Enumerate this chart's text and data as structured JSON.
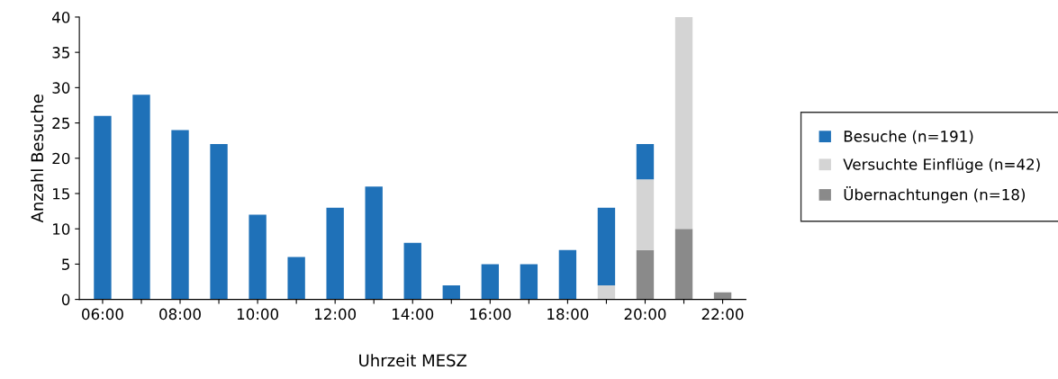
{
  "chart_data": {
    "type": "bar",
    "stacked": true,
    "xlabel": "Uhrzeit MESZ",
    "ylabel": "Anzahl Besuche",
    "categories": [
      "06:00",
      null,
      "08:00",
      null,
      "10:00",
      null,
      "12:00",
      null,
      "14:00",
      null,
      "16:00",
      null,
      "18:00",
      null,
      "20:00",
      null,
      "22:00"
    ],
    "series": [
      {
        "name": "Übernachtungen (n=18)",
        "color": "#8a8a8a",
        "values": [
          null,
          null,
          null,
          null,
          null,
          null,
          null,
          null,
          null,
          null,
          null,
          null,
          null,
          null,
          7,
          10,
          1
        ]
      },
      {
        "name": "Versuchte Einflüge (n=42)",
        "color": "#d4d4d4",
        "values": [
          null,
          null,
          null,
          null,
          null,
          null,
          null,
          null,
          null,
          null,
          null,
          null,
          null,
          2,
          10,
          30,
          null
        ]
      },
      {
        "name": "Besuche (n=191)",
        "color": "#1f71b8",
        "values": [
          26,
          29,
          24,
          22,
          12,
          6,
          13,
          16,
          8,
          2,
          5,
          5,
          7,
          11,
          5,
          null,
          null
        ]
      }
    ],
    "ylim": [
      0,
      40
    ],
    "yticks": [
      0,
      5,
      10,
      15,
      20,
      25,
      30,
      35,
      40
    ],
    "grid": false,
    "legend": "right"
  }
}
